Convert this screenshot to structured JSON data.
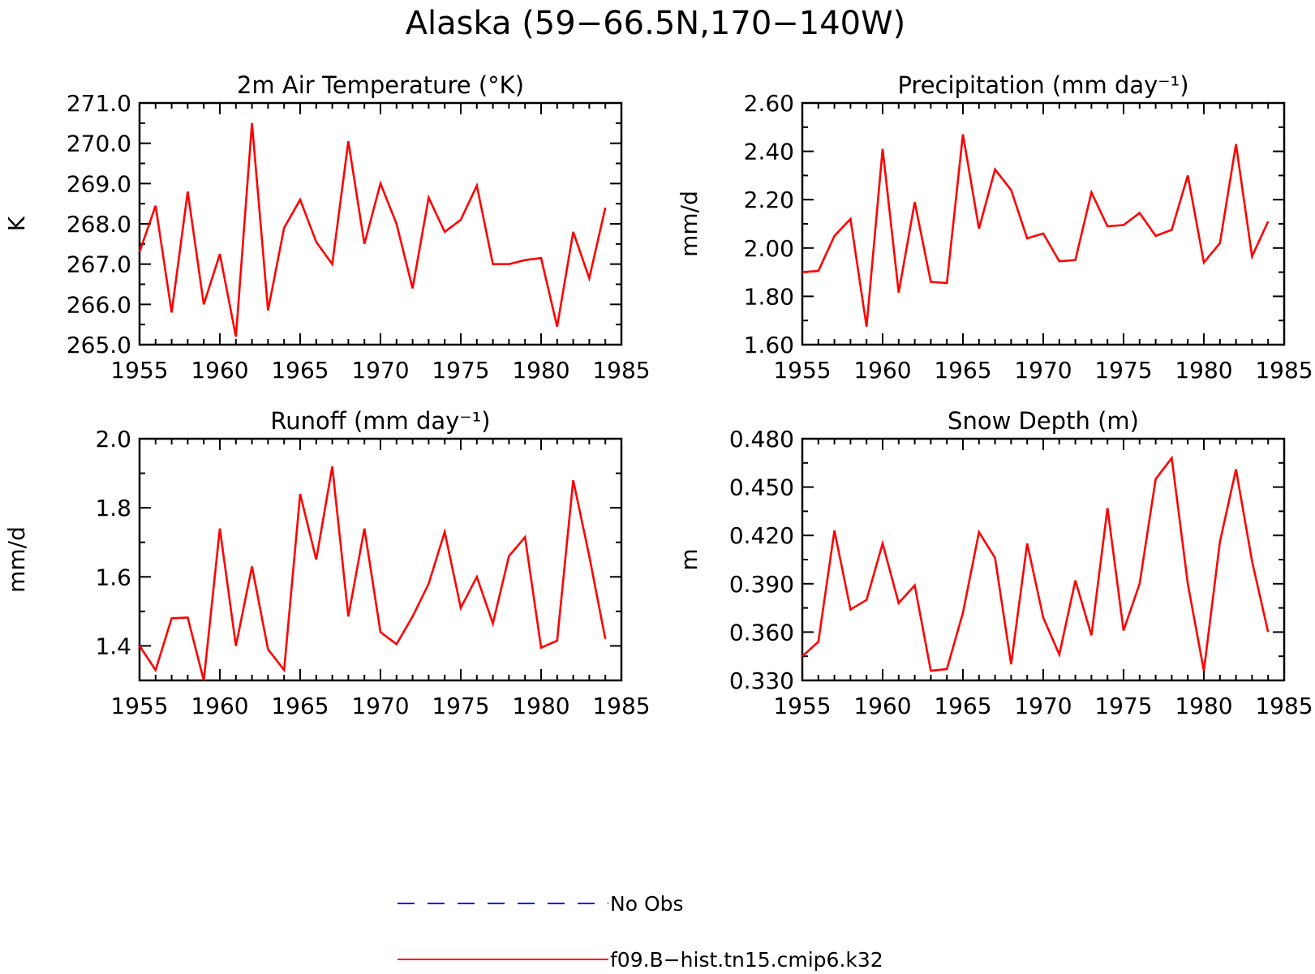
{
  "title": "Alaska (59−66.5N,170−140W)",
  "legend": {
    "items": [
      {
        "label": "No Obs",
        "color": "#0000ff",
        "style": "dashed"
      },
      {
        "label": "f09.B−hist.tn15.cmip6.k32",
        "color": "#ff0000",
        "style": "solid"
      }
    ]
  },
  "chart_data": [
    {
      "type": "line",
      "title": "2m Air Temperature (°K)",
      "ylabel": "K",
      "xlim": [
        1955,
        1985
      ],
      "ylim": [
        265.0,
        271.0
      ],
      "x_ticks": [
        "1955",
        "1960",
        "1965",
        "1970",
        "1975",
        "1980",
        "1985"
      ],
      "y_ticks": [
        "265.0",
        "266.0",
        "267.0",
        "268.0",
        "269.0",
        "270.0",
        "271.0"
      ],
      "series": [
        {
          "name": "f09.B−hist.tn15.cmip6.k32",
          "color": "#ff0000",
          "x": [
            1955,
            1956,
            1957,
            1958,
            1959,
            1960,
            1961,
            1962,
            1963,
            1964,
            1965,
            1966,
            1967,
            1968,
            1969,
            1970,
            1971,
            1972,
            1973,
            1974,
            1975,
            1976,
            1977,
            1978,
            1979,
            1980,
            1981,
            1982,
            1983,
            1984
          ],
          "y": [
            267.3,
            268.45,
            265.8,
            268.8,
            266.0,
            267.25,
            265.2,
            270.5,
            265.85,
            267.9,
            268.6,
            267.55,
            267.0,
            270.05,
            267.5,
            269.0,
            268.0,
            266.4,
            268.65,
            267.8,
            268.1,
            268.95,
            267.0,
            267.0,
            267.1,
            267.15,
            265.45,
            267.8,
            266.65,
            268.4
          ]
        }
      ]
    },
    {
      "type": "line",
      "title": "Precipitation (mm day⁻¹)",
      "ylabel": "mm/d",
      "xlim": [
        1955,
        1985
      ],
      "ylim": [
        1.6,
        2.6
      ],
      "x_ticks": [
        "1955",
        "1960",
        "1965",
        "1970",
        "1975",
        "1980",
        "1985"
      ],
      "y_ticks": [
        "1.60",
        "1.80",
        "2.00",
        "2.20",
        "2.40",
        "2.60"
      ],
      "series": [
        {
          "name": "f09.B−hist.tn15.cmip6.k32",
          "color": "#ff0000",
          "x": [
            1955,
            1956,
            1957,
            1958,
            1959,
            1960,
            1961,
            1962,
            1963,
            1964,
            1965,
            1966,
            1967,
            1968,
            1969,
            1970,
            1971,
            1972,
            1973,
            1974,
            1975,
            1976,
            1977,
            1978,
            1979,
            1980,
            1981,
            1982,
            1983,
            1984
          ],
          "y": [
            1.9,
            1.905,
            2.05,
            2.12,
            1.675,
            2.41,
            1.815,
            2.19,
            1.86,
            1.855,
            2.47,
            2.08,
            2.325,
            2.24,
            2.04,
            2.06,
            1.945,
            1.95,
            2.23,
            2.09,
            2.095,
            2.145,
            2.05,
            2.075,
            2.3,
            1.94,
            2.02,
            2.43,
            1.965,
            2.11
          ]
        }
      ]
    },
    {
      "type": "line",
      "title": "Runoff (mm day⁻¹)",
      "ylabel": "mm/d",
      "xlim": [
        1955,
        1985
      ],
      "ylim": [
        1.3,
        2.0
      ],
      "x_ticks": [
        "1955",
        "1960",
        "1965",
        "1970",
        "1975",
        "1980",
        "1985"
      ],
      "y_ticks": [
        "1.4",
        "1.6",
        "1.8",
        "2.0"
      ],
      "series": [
        {
          "name": "f09.B−hist.tn15.cmip6.k32",
          "color": "#ff0000",
          "x": [
            1955,
            1956,
            1957,
            1958,
            1959,
            1960,
            1961,
            1962,
            1963,
            1964,
            1965,
            1966,
            1967,
            1968,
            1969,
            1970,
            1971,
            1972,
            1973,
            1974,
            1975,
            1976,
            1977,
            1978,
            1979,
            1980,
            1981,
            1982,
            1983,
            1984
          ],
          "y": [
            1.4,
            1.33,
            1.48,
            1.482,
            1.3,
            1.74,
            1.4,
            1.63,
            1.39,
            1.33,
            1.84,
            1.65,
            1.92,
            1.485,
            1.74,
            1.44,
            1.405,
            1.485,
            1.58,
            1.73,
            1.51,
            1.6,
            1.465,
            1.66,
            1.715,
            1.395,
            1.415,
            1.88,
            1.66,
            1.42
          ]
        }
      ]
    },
    {
      "type": "line",
      "title": "Snow Depth (m)",
      "ylabel": "m",
      "xlim": [
        1955,
        1985
      ],
      "ylim": [
        0.33,
        0.48
      ],
      "x_ticks": [
        "1955",
        "1960",
        "1965",
        "1970",
        "1975",
        "1980",
        "1985"
      ],
      "y_ticks": [
        "0.330",
        "0.360",
        "0.390",
        "0.420",
        "0.450",
        "0.480"
      ],
      "series": [
        {
          "name": "f09.B−hist.tn15.cmip6.k32",
          "color": "#ff0000",
          "x": [
            1955,
            1956,
            1957,
            1958,
            1959,
            1960,
            1961,
            1962,
            1963,
            1964,
            1965,
            1966,
            1967,
            1968,
            1969,
            1970,
            1971,
            1972,
            1973,
            1974,
            1975,
            1976,
            1977,
            1978,
            1979,
            1980,
            1981,
            1982,
            1983,
            1984
          ],
          "y": [
            0.345,
            0.354,
            0.423,
            0.374,
            0.38,
            0.415,
            0.378,
            0.389,
            0.336,
            0.337,
            0.372,
            0.422,
            0.406,
            0.34,
            0.415,
            0.369,
            0.346,
            0.392,
            0.358,
            0.437,
            0.361,
            0.39,
            0.455,
            0.468,
            0.39,
            0.336,
            0.416,
            0.461,
            0.404,
            0.36
          ]
        }
      ]
    }
  ]
}
